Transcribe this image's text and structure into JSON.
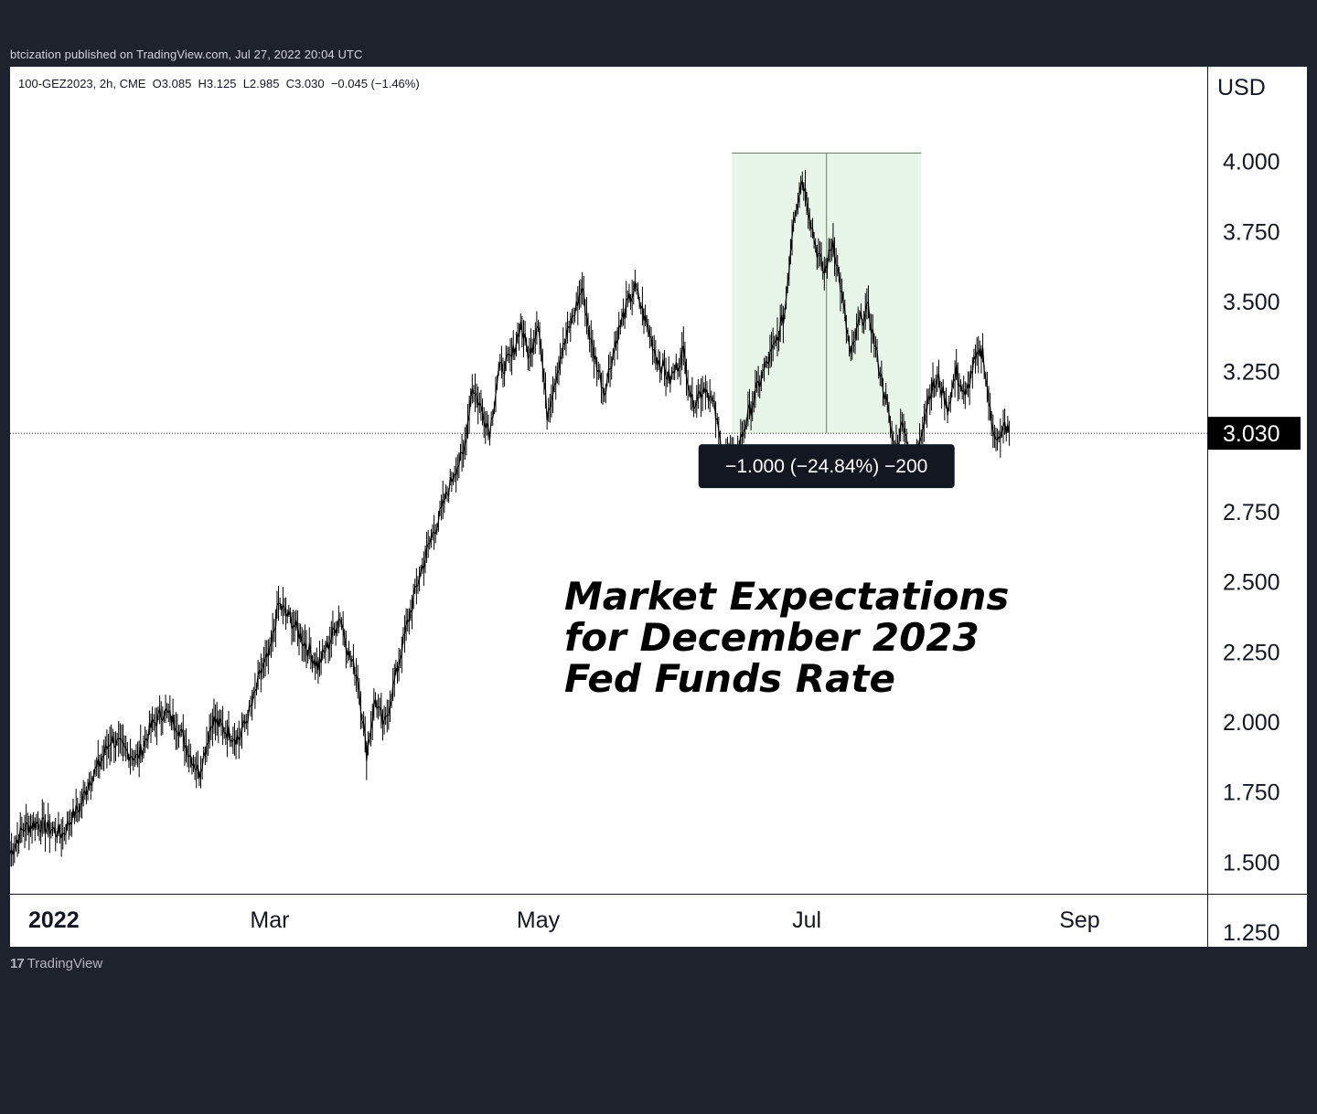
{
  "header": {
    "publish_line": "btcization published on TradingView.com, Jul 27, 2022 20:04 UTC"
  },
  "footer": {
    "logo_glyph": "17",
    "logo_text": "TradingView"
  },
  "chart_data": {
    "type": "line",
    "symbol_info": "100-GEZ2023, 2h, CME  O3.085  H3.125  L2.985  C3.030  −0.045 (−1.46%)",
    "currency_label": "USD",
    "annotation": [
      "Market Expectations",
      "for December 2023",
      "Fed Funds Rate"
    ],
    "y_ticks": [
      "4.000",
      "3.750",
      "3.500",
      "3.250",
      "2.750",
      "2.500",
      "2.250",
      "2.000",
      "1.750",
      "1.500",
      "1.250"
    ],
    "y_tick_values": [
      4.0,
      3.75,
      3.5,
      3.25,
      2.75,
      2.5,
      2.25,
      2.0,
      1.75,
      1.5,
      1.25
    ],
    "ylim": [
      1.25,
      4.25
    ],
    "x_ticks": [
      {
        "label": "2022",
        "date": "2022-01-01",
        "bold": true
      },
      {
        "label": "Mar",
        "date": "2022-03-01",
        "bold": false
      },
      {
        "label": "May",
        "date": "2022-05-01",
        "bold": false
      },
      {
        "label": "Jul",
        "date": "2022-07-01",
        "bold": false
      },
      {
        "label": "Sep",
        "date": "2022-09-01",
        "bold": false
      }
    ],
    "xlim": [
      "2022-01-01",
      "2022-09-30"
    ],
    "last_price": {
      "label": "3.030",
      "value": 3.03
    },
    "measure": {
      "label": "−1.000 (−24.84%) −200",
      "x_start": "2022-06-14",
      "x_end": "2022-07-27",
      "y_top": 4.03,
      "y_bottom": 3.03,
      "fill_color": "#e8f5e9",
      "line_color": "#6b7d6b"
    },
    "series": [
      {
        "color": "#000000",
        "points": [
          [
            "2022-01-01",
            1.53
          ],
          [
            "2022-01-04",
            1.62
          ],
          [
            "2022-01-07",
            1.64
          ],
          [
            "2022-01-10",
            1.62
          ],
          [
            "2022-01-13",
            1.6
          ],
          [
            "2022-01-15",
            1.66
          ],
          [
            "2022-01-17",
            1.7
          ],
          [
            "2022-01-19",
            1.79
          ],
          [
            "2022-01-21",
            1.84
          ],
          [
            "2022-01-24",
            1.94
          ],
          [
            "2022-01-27",
            1.9
          ],
          [
            "2022-01-30",
            1.87
          ],
          [
            "2022-02-02",
            1.98
          ],
          [
            "2022-02-05",
            2.04
          ],
          [
            "2022-02-08",
            1.99
          ],
          [
            "2022-02-11",
            1.88
          ],
          [
            "2022-02-13",
            1.82
          ],
          [
            "2022-02-16",
            2.01
          ],
          [
            "2022-02-19",
            1.97
          ],
          [
            "2022-02-22",
            1.94
          ],
          [
            "2022-02-25",
            2.06
          ],
          [
            "2022-02-27",
            2.18
          ],
          [
            "2022-03-01",
            2.24
          ],
          [
            "2022-03-03",
            2.42
          ],
          [
            "2022-03-06",
            2.36
          ],
          [
            "2022-03-09",
            2.28
          ],
          [
            "2022-03-12",
            2.2
          ],
          [
            "2022-03-15",
            2.3
          ],
          [
            "2022-03-17",
            2.38
          ],
          [
            "2022-03-19",
            2.24
          ],
          [
            "2022-03-21",
            2.16
          ],
          [
            "2022-03-23",
            1.89
          ],
          [
            "2022-03-25",
            2.08
          ],
          [
            "2022-03-27",
            1.98
          ],
          [
            "2022-03-29",
            2.12
          ],
          [
            "2022-04-01",
            2.33
          ],
          [
            "2022-04-04",
            2.52
          ],
          [
            "2022-04-07",
            2.67
          ],
          [
            "2022-04-09",
            2.75
          ],
          [
            "2022-04-12",
            2.9
          ],
          [
            "2022-04-14",
            2.95
          ],
          [
            "2022-04-16",
            3.2
          ],
          [
            "2022-04-18",
            3.12
          ],
          [
            "2022-04-20",
            3.04
          ],
          [
            "2022-04-22",
            3.25
          ],
          [
            "2022-04-25",
            3.3
          ],
          [
            "2022-04-27",
            3.42
          ],
          [
            "2022-04-29",
            3.3
          ],
          [
            "2022-05-01",
            3.44
          ],
          [
            "2022-05-03",
            3.1
          ],
          [
            "2022-05-06",
            3.3
          ],
          [
            "2022-05-09",
            3.45
          ],
          [
            "2022-05-11",
            3.55
          ],
          [
            "2022-05-13",
            3.35
          ],
          [
            "2022-05-16",
            3.18
          ],
          [
            "2022-05-19",
            3.38
          ],
          [
            "2022-05-21",
            3.48
          ],
          [
            "2022-05-23",
            3.55
          ],
          [
            "2022-05-25",
            3.45
          ],
          [
            "2022-05-28",
            3.3
          ],
          [
            "2022-05-31",
            3.22
          ],
          [
            "2022-06-03",
            3.32
          ],
          [
            "2022-06-05",
            3.14
          ],
          [
            "2022-06-08",
            3.2
          ],
          [
            "2022-06-10",
            3.12
          ],
          [
            "2022-06-12",
            2.94
          ],
          [
            "2022-06-15",
            2.96
          ],
          [
            "2022-06-17",
            3.06
          ],
          [
            "2022-06-20",
            3.2
          ],
          [
            "2022-06-22",
            3.28
          ],
          [
            "2022-06-24",
            3.35
          ],
          [
            "2022-06-26",
            3.46
          ],
          [
            "2022-06-28",
            3.8
          ],
          [
            "2022-06-30",
            3.94
          ],
          [
            "2022-07-01",
            3.87
          ],
          [
            "2022-07-03",
            3.7
          ],
          [
            "2022-07-05",
            3.6
          ],
          [
            "2022-07-07",
            3.72
          ],
          [
            "2022-07-09",
            3.52
          ],
          [
            "2022-07-11",
            3.3
          ],
          [
            "2022-07-13",
            3.43
          ],
          [
            "2022-07-15",
            3.47
          ],
          [
            "2022-07-17",
            3.3
          ],
          [
            "2022-07-19",
            3.15
          ],
          [
            "2022-07-21",
            2.96
          ],
          [
            "2022-07-23",
            3.08
          ],
          [
            "2022-07-25",
            2.88
          ],
          [
            "2022-07-27",
            3.04
          ],
          [
            "2022-07-29",
            3.18
          ],
          [
            "2022-07-31",
            3.22
          ],
          [
            "2022-08-02",
            3.12
          ],
          [
            "2022-08-04",
            3.25
          ],
          [
            "2022-08-06",
            3.15
          ],
          [
            "2022-08-08",
            3.28
          ],
          [
            "2022-08-10",
            3.32
          ],
          [
            "2022-08-12",
            3.06
          ],
          [
            "2022-08-14",
            3.0
          ],
          [
            "2022-08-15",
            3.06
          ],
          [
            "2022-08-16",
            3.03
          ]
        ]
      }
    ]
  }
}
